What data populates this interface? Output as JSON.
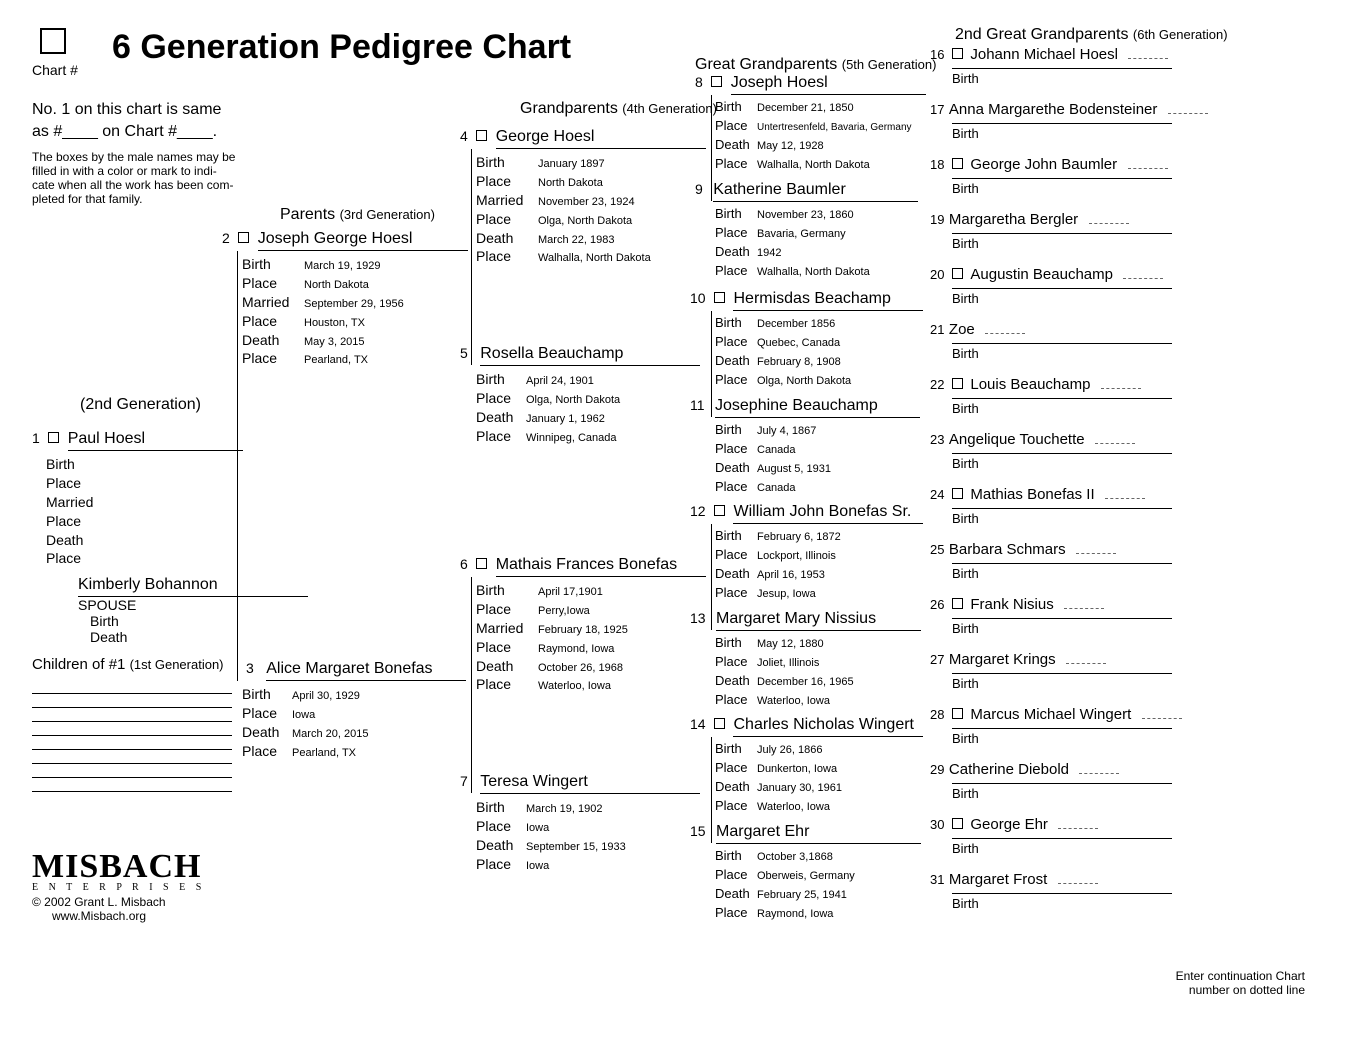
{
  "title": "6 Generation Pedigree Chart",
  "chartNumLabel": "Chart #",
  "sameAsNote1": "No. 1 on this chart is same",
  "sameAsNote2": "as #____ on Chart #____.",
  "boxNote1": "The boxes by the male names may be",
  "boxNote2": "filled in with a color or mark to indi-",
  "boxNote3": "cate when all the work has been com-",
  "boxNote4": "pleted for that family.",
  "genHeaders": {
    "g2": "(2nd Generation)",
    "g3": "Parents",
    "g3sub": "(3rd Generation)",
    "g4": "Grandparents",
    "g4sub": "(4th Generation)",
    "g5": "Great Grandparents",
    "g5sub": "(5th Generation)",
    "g6": "2nd Great Grandparents",
    "g6sub": "(6th Generation)"
  },
  "labels": {
    "birth": "Birth",
    "place": "Place",
    "married": "Married",
    "death": "Death",
    "spouse": "SPOUSE",
    "childrenOf": "Children of #1",
    "childrenGen": "(1st Generation)"
  },
  "p1": {
    "num": "1",
    "name": "Paul Hoesl"
  },
  "spouse": {
    "name": "Kimberly Bohannon"
  },
  "p2": {
    "num": "2",
    "name": "Joseph George Hoesl",
    "birth": "March 19, 1929",
    "birthPlace": "North Dakota",
    "married": "September 29, 1956",
    "marriedPlace": "Houston, TX",
    "death": "May 3, 2015",
    "deathPlace": "Pearland, TX"
  },
  "p3": {
    "num": "3",
    "name": "Alice Margaret Bonefas",
    "birth": "April 30, 1929",
    "birthPlace": "Iowa",
    "death": "March 20, 2015",
    "deathPlace": "Pearland, TX"
  },
  "p4": {
    "num": "4",
    "name": "George Hoesl",
    "birth": "January 1897",
    "birthPlace": "North Dakota",
    "married": "November 23, 1924",
    "marriedPlace": "Olga, North Dakota",
    "death": "March 22, 1983",
    "deathPlace": "Walhalla, North Dakota"
  },
  "p5": {
    "num": "5",
    "name": "Rosella Beauchamp",
    "birth": "April 24, 1901",
    "birthPlace": "Olga, North Dakota",
    "death": "January 1, 1962",
    "deathPlace": "Winnipeg, Canada"
  },
  "p6": {
    "num": "6",
    "name": "Mathais Frances Bonefas",
    "birth": "April 17,1901",
    "birthPlace": "Perry,Iowa",
    "married": "February 18, 1925",
    "marriedPlace": "Raymond, Iowa",
    "death": "October 26, 1968",
    "deathPlace": "Waterloo, Iowa"
  },
  "p7": {
    "num": "7",
    "name": "Teresa Wingert",
    "birth": "March 19, 1902",
    "birthPlace": "Iowa",
    "death": "September 15, 1933",
    "deathPlace": "Iowa"
  },
  "p8": {
    "num": "8",
    "name": "Joseph Hoesl",
    "birth": "December 21, 1850",
    "birthPlace": "Untertresenfeld, Bavaria, Germany",
    "death": "May 12, 1928",
    "deathPlace": "Walhalla, North Dakota"
  },
  "p9": {
    "num": "9",
    "name": "Katherine Baumler",
    "birth": "November 23, 1860",
    "birthPlace": "Bavaria, Germany",
    "death": "1942",
    "deathPlace": "Walhalla, North Dakota"
  },
  "p10": {
    "num": "10",
    "name": "Hermisdas Beachamp",
    "birth": "December 1856",
    "birthPlace": "Quebec, Canada",
    "death": "February 8, 1908",
    "deathPlace": "Olga, North Dakota"
  },
  "p11": {
    "num": "11",
    "name": "Josephine Beauchamp",
    "birth": "July 4, 1867",
    "birthPlace": "Canada",
    "death": "August 5, 1931",
    "deathPlace": "Canada"
  },
  "p12": {
    "num": "12",
    "name": "William John Bonefas Sr.",
    "birth": "February 6, 1872",
    "birthPlace": "Lockport, Illinois",
    "death": "April 16, 1953",
    "deathPlace": "Jesup, Iowa"
  },
  "p13": {
    "num": "13",
    "name": "Margaret Mary Nissius",
    "birth": "May 12, 1880",
    "birthPlace": "Joliet, Illinois",
    "death": "December 16, 1965",
    "deathPlace": "Waterloo, Iowa"
  },
  "p14": {
    "num": "14",
    "name": "Charles Nicholas Wingert",
    "birth": "July 26, 1866",
    "birthPlace": "Dunkerton, Iowa",
    "death": "January 30, 1961",
    "deathPlace": "Waterloo, Iowa"
  },
  "p15": {
    "num": "15",
    "name": "Margaret Ehr",
    "birth": "October 3,1868",
    "birthPlace": "Oberweis, Germany",
    "death": "February 25, 1941",
    "deathPlace": "Raymond, Iowa"
  },
  "p16": {
    "num": "16",
    "name": "Johann Michael Hoesl"
  },
  "p17": {
    "num": "17",
    "name": "Anna Margarethe Bodensteiner"
  },
  "p18": {
    "num": "18",
    "name": "George John Baumler"
  },
  "p19": {
    "num": "19",
    "name": "Margaretha Bergler"
  },
  "p20": {
    "num": "20",
    "name": "Augustin Beauchamp"
  },
  "p21": {
    "num": "21",
    "name": "Zoe"
  },
  "p22": {
    "num": "22",
    "name": "Louis Beauchamp"
  },
  "p23": {
    "num": "23",
    "name": "Angelique Touchette"
  },
  "p24": {
    "num": "24",
    "name": "Mathias Bonefas II"
  },
  "p25": {
    "num": "25",
    "name": "Barbara Schmars"
  },
  "p26": {
    "num": "26",
    "name": "Frank Nisius"
  },
  "p27": {
    "num": "27",
    "name": "Margaret Krings"
  },
  "p28": {
    "num": "28",
    "name": "Marcus Michael Wingert"
  },
  "p29": {
    "num": "29",
    "name": "Catherine Diebold"
  },
  "p30": {
    "num": "30",
    "name": "George Ehr"
  },
  "p31": {
    "num": "31",
    "name": "Margaret Frost"
  },
  "footer": {
    "logoTop": "MISBACH",
    "logoSub": "E  N  T  E  R  P  R  I  S  E  S",
    "copyright": "© 2002 Grant L. Misbach",
    "url": "www.Misbach.org",
    "contNote1": "Enter continuation Chart",
    "contNote2": "number on dotted line"
  }
}
